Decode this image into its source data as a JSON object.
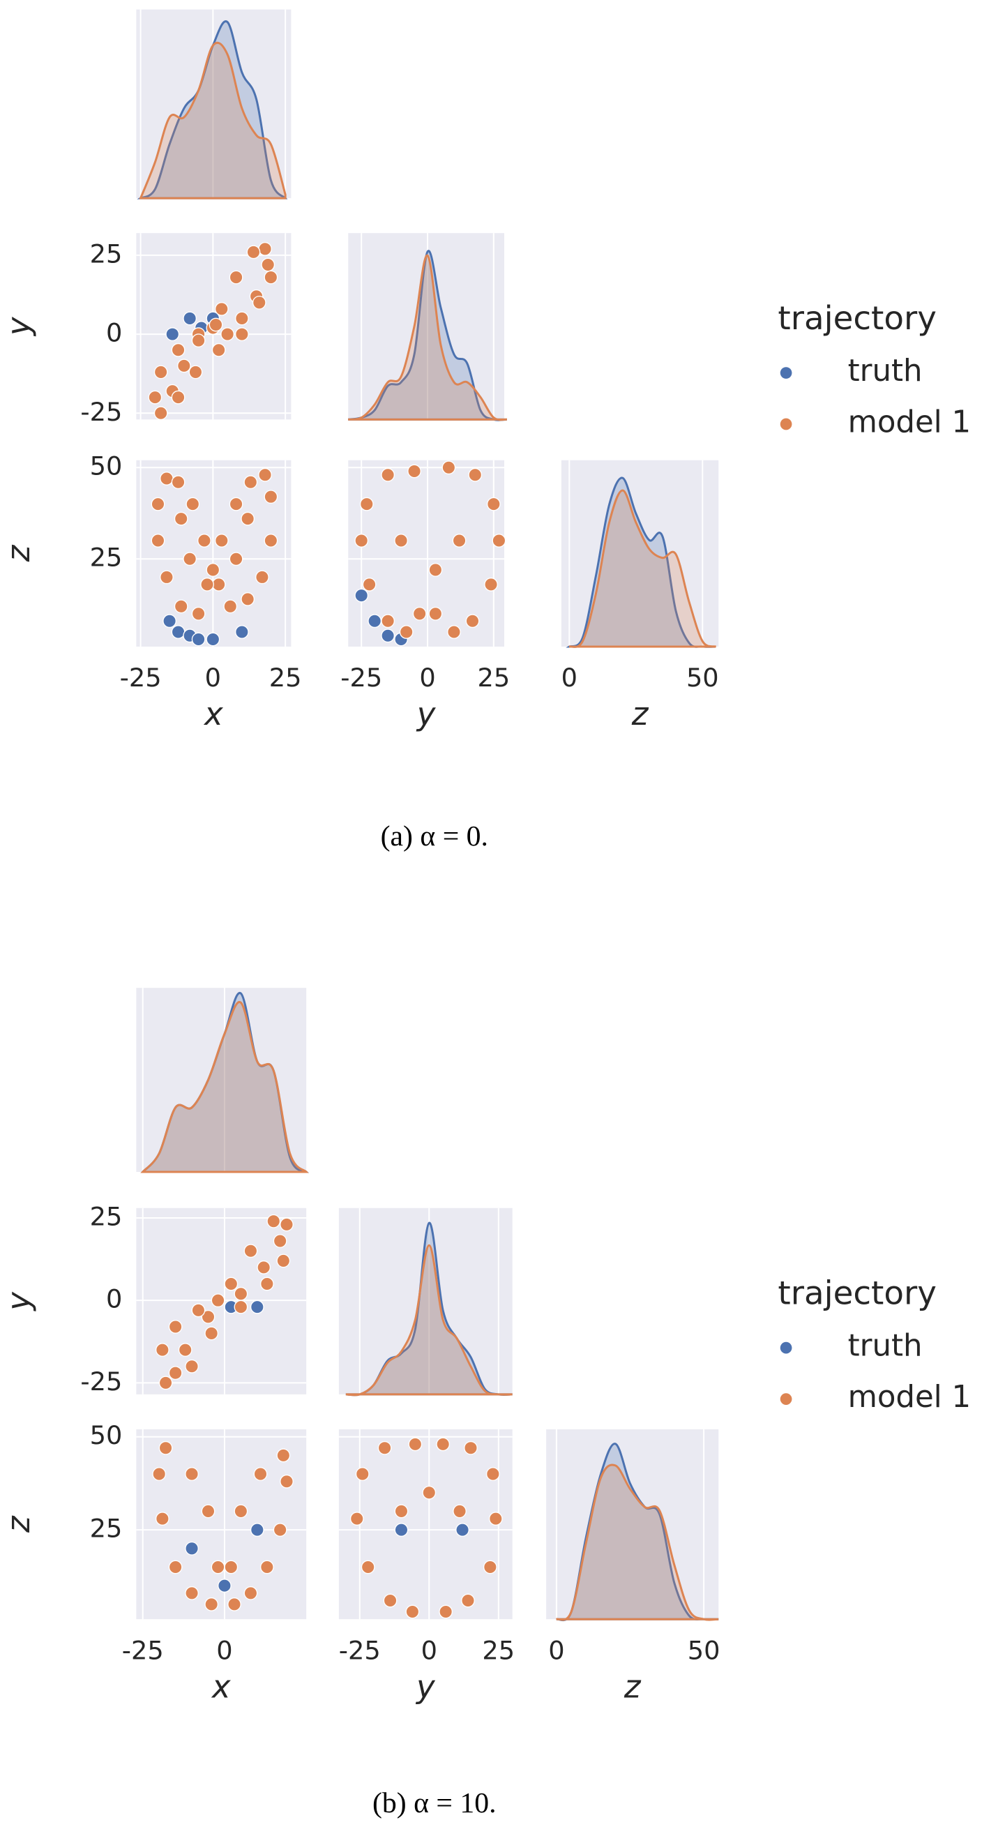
{
  "chart_data": [
    {
      "type": "pairplot",
      "caption": "(a) α = 0.",
      "legend_title": "trajectory",
      "series": [
        {
          "name": "truth",
          "color": "#4c72b0"
        },
        {
          "name": "model 1",
          "color": "#dd8452"
        }
      ],
      "panels": [
        {
          "type": "kde",
          "xlim": [
            -26.5,
            27
          ],
          "ylim": [
            0,
            1.05
          ],
          "xticks": [
            -25,
            0,
            25
          ],
          "x": [
            -25,
            -20,
            -15,
            -10,
            -5,
            0,
            5,
            10,
            15,
            20,
            25
          ],
          "series": [
            {
              "values": [
                0,
                0.05,
                0.3,
                0.5,
                0.6,
                0.85,
                0.98,
                0.7,
                0.55,
                0.1,
                0
              ]
            },
            {
              "values": [
                0,
                0.2,
                0.45,
                0.45,
                0.6,
                0.85,
                0.8,
                0.5,
                0.35,
                0.3,
                0.02
              ]
            }
          ]
        },
        {
          "type": "scatter",
          "ylabel": "y",
          "xlim": [
            -26.5,
            27
          ],
          "ylim": [
            -27,
            32
          ],
          "xticks": [
            -25,
            0,
            25
          ],
          "yticks": [
            -25,
            0,
            25
          ],
          "series": [
            {
              "x": [
                -8,
                0,
                -14,
                -4
              ],
              "y": [
                5,
                5,
                0,
                2
              ]
            },
            {
              "x": [
                -18,
                -20,
                -18,
                -12,
                -5,
                0,
                5,
                10,
                15,
                19,
                18,
                14,
                8,
                3,
                -5,
                -10,
                -14,
                -12,
                -6,
                2,
                10,
                16,
                20,
                1
              ],
              "y": [
                -25,
                -20,
                -12,
                -5,
                0,
                2,
                0,
                5,
                12,
                22,
                27,
                26,
                18,
                8,
                -2,
                -10,
                -18,
                -20,
                -12,
                -5,
                0,
                10,
                18,
                3
              ]
            }
          ]
        },
        {
          "type": "kde",
          "xlim": [
            -30,
            29
          ],
          "ylim": [
            0,
            1.0
          ],
          "xticks": [
            -25,
            0,
            25
          ],
          "x": [
            -30,
            -25,
            -20,
            -15,
            -10,
            -5,
            0,
            5,
            10,
            15,
            20,
            25,
            30
          ],
          "series": [
            {
              "values": [
                0,
                0.01,
                0.05,
                0.18,
                0.2,
                0.35,
                0.9,
                0.6,
                0.35,
                0.3,
                0.05,
                0,
                0
              ]
            },
            {
              "values": [
                0,
                0.01,
                0.08,
                0.2,
                0.23,
                0.5,
                0.88,
                0.4,
                0.2,
                0.2,
                0.12,
                0.01,
                0
              ]
            }
          ]
        },
        {
          "type": "scatter",
          "xlabel": "x",
          "ylabel": "z",
          "xlim": [
            -26.5,
            27
          ],
          "ylim": [
            1,
            52
          ],
          "xticks": [
            -25,
            0,
            25
          ],
          "yticks": [
            25,
            50
          ],
          "series": [
            {
              "x": [
                -12,
                -8,
                -15,
                -5,
                10,
                0
              ],
              "y": [
                5,
                4,
                8,
                3,
                5,
                3
              ]
            },
            {
              "x": [
                18,
                20,
                20,
                17,
                12,
                6,
                2,
                3,
                8,
                13,
                -16,
                -19,
                -19,
                -16,
                -11,
                -5,
                -2,
                -3,
                -7,
                -12,
                0,
                12,
                -11,
                8,
                -8
              ],
              "y": [
                48,
                42,
                30,
                20,
                14,
                12,
                18,
                30,
                40,
                46,
                47,
                40,
                30,
                20,
                12,
                10,
                18,
                30,
                40,
                46,
                22,
                36,
                36,
                25,
                25
              ]
            }
          ]
        },
        {
          "type": "scatter",
          "xlabel": "y",
          "xlim": [
            -30,
            29
          ],
          "ylim": [
            1,
            52
          ],
          "xticks": [
            -25,
            0,
            25
          ],
          "yticks": [
            25,
            50
          ],
          "series": [
            {
              "x": [
                -20,
                -15,
                -25,
                -10
              ],
              "y": [
                8,
                4,
                15,
                3
              ]
            },
            {
              "x": [
                -25,
                -23,
                -15,
                -5,
                -22,
                -15,
                -8,
                -3,
                27,
                25,
                18,
                8,
                24,
                17,
                10,
                3,
                -10,
                12,
                3
              ],
              "y": [
                30,
                40,
                48,
                49,
                18,
                8,
                5,
                10,
                30,
                40,
                48,
                50,
                18,
                8,
                5,
                10,
                30,
                30,
                22
              ]
            }
          ]
        },
        {
          "type": "kde",
          "xlabel": "z",
          "xlim": [
            -3,
            56
          ],
          "ylim": [
            0,
            1.05
          ],
          "xticks": [
            0,
            50
          ],
          "x": [
            0,
            5,
            10,
            15,
            20,
            25,
            30,
            35,
            40,
            45,
            50,
            55
          ],
          "series": [
            {
              "values": [
                0,
                0.05,
                0.4,
                0.8,
                0.95,
                0.75,
                0.6,
                0.62,
                0.2,
                0.02,
                0,
                0
              ]
            },
            {
              "values": [
                0,
                0.03,
                0.3,
                0.7,
                0.88,
                0.7,
                0.55,
                0.5,
                0.52,
                0.25,
                0.03,
                0
              ]
            }
          ]
        }
      ]
    },
    {
      "type": "pairplot",
      "caption": "(b) α = 10.",
      "legend_title": "trajectory",
      "series": [
        {
          "name": "truth",
          "color": "#4c72b0"
        },
        {
          "name": "model 1",
          "color": "#dd8452"
        }
      ],
      "panels": [
        {
          "type": "kde",
          "xlim": [
            -27,
            25
          ],
          "ylim": [
            0,
            1.0
          ],
          "xticks": [
            -25,
            0
          ],
          "x": [
            -25,
            -20,
            -15,
            -10,
            -5,
            0,
            5,
            10,
            15,
            20,
            25
          ],
          "series": [
            {
              "values": [
                0,
                0.1,
                0.35,
                0.35,
                0.5,
                0.75,
                0.97,
                0.6,
                0.55,
                0.08,
                0
              ]
            },
            {
              "values": [
                0,
                0.1,
                0.35,
                0.35,
                0.5,
                0.75,
                0.92,
                0.6,
                0.55,
                0.1,
                0
              ]
            }
          ]
        },
        {
          "type": "scatter",
          "ylabel": "y",
          "xlim": [
            -27,
            25
          ],
          "ylim": [
            -28.5,
            28
          ],
          "xticks": [
            -25,
            0
          ],
          "yticks": [
            -25,
            0,
            25
          ],
          "series": [
            {
              "x": [
                2,
                10
              ],
              "y": [
                -2,
                -2
              ]
            },
            {
              "x": [
                -18,
                -19,
                -15,
                -8,
                -2,
                5,
                12,
                17,
                19,
                15,
                8,
                2,
                -5,
                -12,
                -15,
                -10,
                -4,
                5,
                13,
                18,
                -8
              ],
              "y": [
                -25,
                -15,
                -8,
                -3,
                0,
                2,
                10,
                18,
                23,
                24,
                15,
                5,
                -5,
                -15,
                -22,
                -20,
                -10,
                -2,
                5,
                12,
                -3
              ]
            }
          ]
        },
        {
          "type": "kde",
          "xlim": [
            -32.5,
            30
          ],
          "ylim": [
            0,
            1.0
          ],
          "xticks": [
            -25,
            0,
            25
          ],
          "x": [
            -30,
            -25,
            -20,
            -15,
            -10,
            -5,
            0,
            5,
            10,
            15,
            20,
            25,
            30
          ],
          "series": [
            {
              "values": [
                0,
                0,
                0.05,
                0.18,
                0.22,
                0.35,
                0.92,
                0.45,
                0.3,
                0.2,
                0.03,
                0,
                0
              ]
            },
            {
              "values": [
                0,
                0,
                0.05,
                0.17,
                0.23,
                0.4,
                0.8,
                0.4,
                0.3,
                0.15,
                0.02,
                0,
                0
              ]
            }
          ]
        },
        {
          "type": "scatter",
          "xlabel": "x",
          "ylabel": "z",
          "xlim": [
            -27,
            25
          ],
          "ylim": [
            1,
            52
          ],
          "xticks": [
            -25,
            0
          ],
          "yticks": [
            25,
            50
          ],
          "series": [
            {
              "x": [
                -10,
                10,
                0
              ],
              "y": [
                20,
                25,
                10
              ]
            },
            {
              "x": [
                -18,
                -20,
                -19,
                -15,
                -10,
                -4,
                -2,
                -5,
                -10,
                18,
                19,
                17,
                13,
                8,
                3,
                2,
                5,
                11
              ],
              "y": [
                47,
                40,
                28,
                15,
                8,
                5,
                15,
                30,
                40,
                45,
                38,
                25,
                15,
                8,
                5,
                15,
                30,
                40
              ]
            }
          ]
        },
        {
          "type": "scatter",
          "xlabel": "y",
          "xlim": [
            -32.5,
            30
          ],
          "ylim": [
            1,
            52
          ],
          "xticks": [
            -25,
            0,
            25
          ],
          "yticks": [
            25,
            50
          ],
          "series": [
            {
              "x": [
                -10,
                12
              ],
              "y": [
                25,
                25
              ]
            },
            {
              "x": [
                -26,
                -24,
                -16,
                -5,
                -22,
                -14,
                -6,
                24,
                23,
                15,
                5,
                22,
                14,
                6,
                0,
                -10,
                11
              ],
              "y": [
                28,
                40,
                47,
                48,
                15,
                6,
                3,
                28,
                40,
                47,
                48,
                15,
                6,
                3,
                35,
                30,
                30
              ]
            }
          ]
        },
        {
          "type": "kde",
          "xlabel": "z",
          "xlim": [
            -3.5,
            55
          ],
          "ylim": [
            0,
            1.05
          ],
          "xticks": [
            0,
            50
          ],
          "x": [
            0,
            5,
            10,
            15,
            20,
            25,
            30,
            35,
            40,
            45,
            50,
            55
          ],
          "series": [
            {
              "values": [
                0,
                0.04,
                0.45,
                0.8,
                0.97,
                0.75,
                0.62,
                0.58,
                0.2,
                0.02,
                0,
                0
              ]
            },
            {
              "values": [
                0,
                0.04,
                0.42,
                0.78,
                0.85,
                0.72,
                0.62,
                0.6,
                0.3,
                0.05,
                0,
                0
              ]
            }
          ]
        }
      ]
    }
  ]
}
